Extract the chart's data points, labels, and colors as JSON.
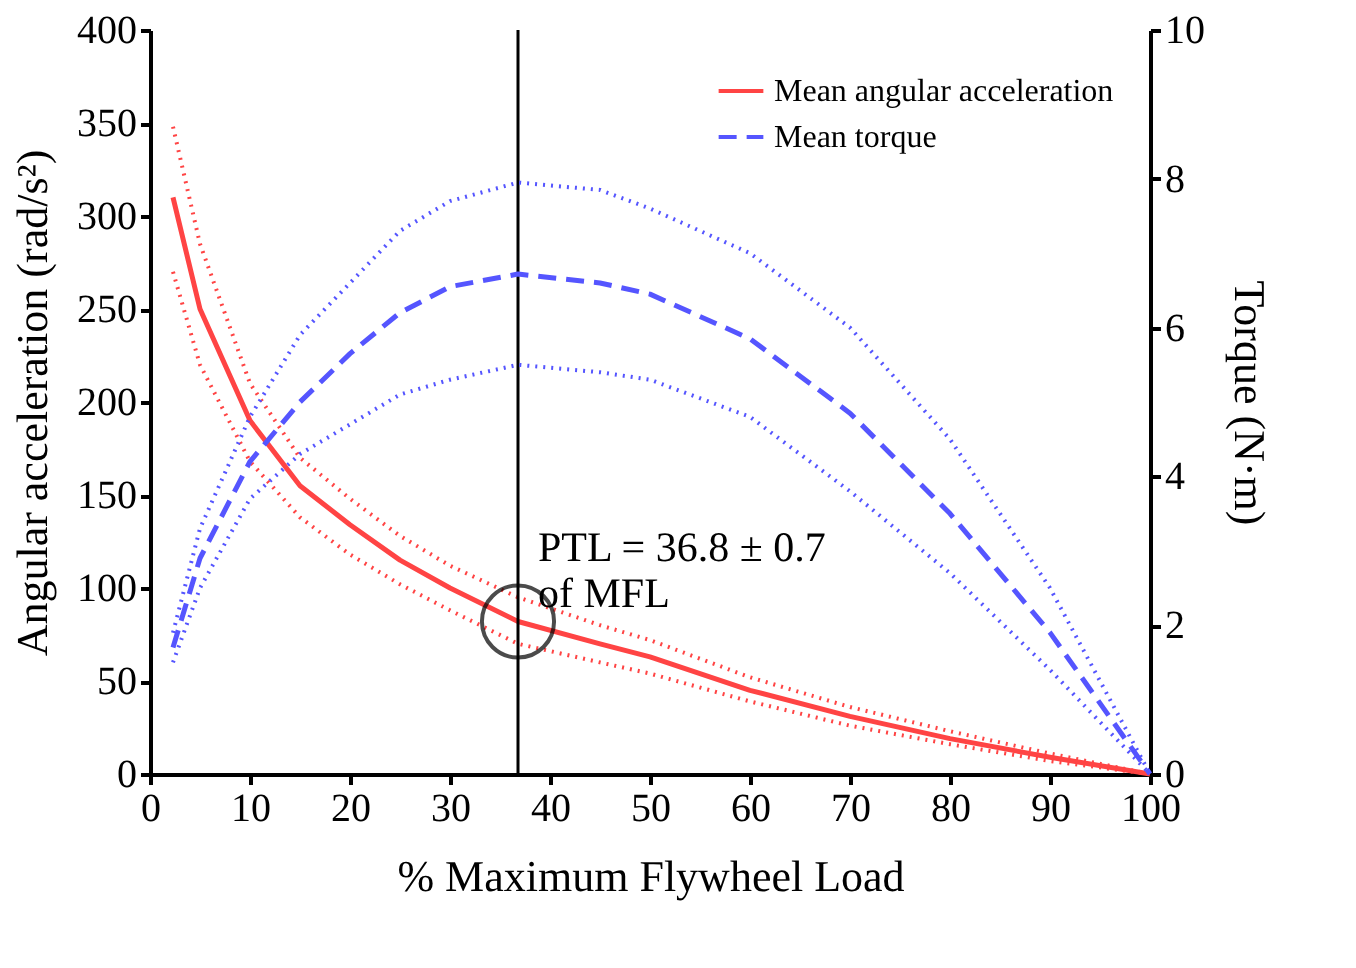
{
  "chart_data": {
    "type": "line",
    "xlabel": "% Maximum Flywheel Load",
    "ylabel": "Angular acceleration (rad/s²)",
    "y2label": "Torque (N·m)",
    "x": [
      2.3,
      5,
      10,
      15,
      20,
      25,
      30,
      36.8,
      45,
      50,
      60,
      70,
      80,
      90,
      100
    ],
    "series": [
      {
        "name": "Mean angular acceleration",
        "color": "#ff4444",
        "line_style": "solid",
        "values": [
          310,
          250,
          190,
          155,
          134,
          115,
          100,
          82,
          70,
          63,
          45,
          31,
          19,
          9,
          0
        ]
      },
      {
        "color": "#ff4444",
        "line_style": "dotted",
        "values": [
          348,
          285,
          210,
          170,
          148,
          128,
          112,
          95,
          80,
          72,
          52,
          36,
          23,
          11,
          0
        ]
      },
      {
        "color": "#ff4444",
        "line_style": "dotted",
        "values": [
          270,
          220,
          168,
          138,
          118,
          102,
          88,
          70,
          60,
          54,
          39,
          26,
          16,
          7,
          0
        ]
      },
      {
        "name": "Mean torque",
        "color": "#5555ff",
        "line_style": "dashed",
        "axis": "y2",
        "values": [
          1.7,
          2.9,
          4.2,
          5.0,
          5.65,
          6.2,
          6.55,
          6.72,
          6.6,
          6.45,
          5.85,
          4.85,
          3.5,
          1.9,
          0
        ]
      },
      {
        "color": "#5555ff",
        "line_style": "dotted",
        "axis": "y2",
        "values": [
          1.9,
          3.3,
          4.8,
          5.9,
          6.6,
          7.3,
          7.7,
          7.95,
          7.85,
          7.6,
          7.0,
          6.0,
          4.5,
          2.5,
          0
        ]
      },
      {
        "color": "#5555ff",
        "line_style": "dotted",
        "axis": "y2",
        "values": [
          1.5,
          2.5,
          3.7,
          4.3,
          4.7,
          5.1,
          5.3,
          5.5,
          5.4,
          5.3,
          4.8,
          3.8,
          2.7,
          1.4,
          0
        ]
      }
    ],
    "xlim": [
      0,
      100
    ],
    "xticks": [
      0,
      10,
      20,
      30,
      40,
      50,
      60,
      70,
      80,
      90,
      100
    ],
    "ylim": [
      0,
      400
    ],
    "yticks": [
      0,
      50,
      100,
      150,
      200,
      250,
      300,
      350,
      400
    ],
    "y2lim": [
      0,
      10
    ],
    "y2ticks": [
      0,
      2,
      4,
      6,
      8,
      10
    ],
    "ref_lines": [
      {
        "axis": "x",
        "value": 36.8,
        "color": "#000000"
      }
    ],
    "annotations": [
      {
        "text": "PTL = 36.8 ± 0.7\nof MFL",
        "x": 36.8,
        "y": 82
      }
    ],
    "legend": "top right",
    "grid": false,
    "marker": "none"
  }
}
